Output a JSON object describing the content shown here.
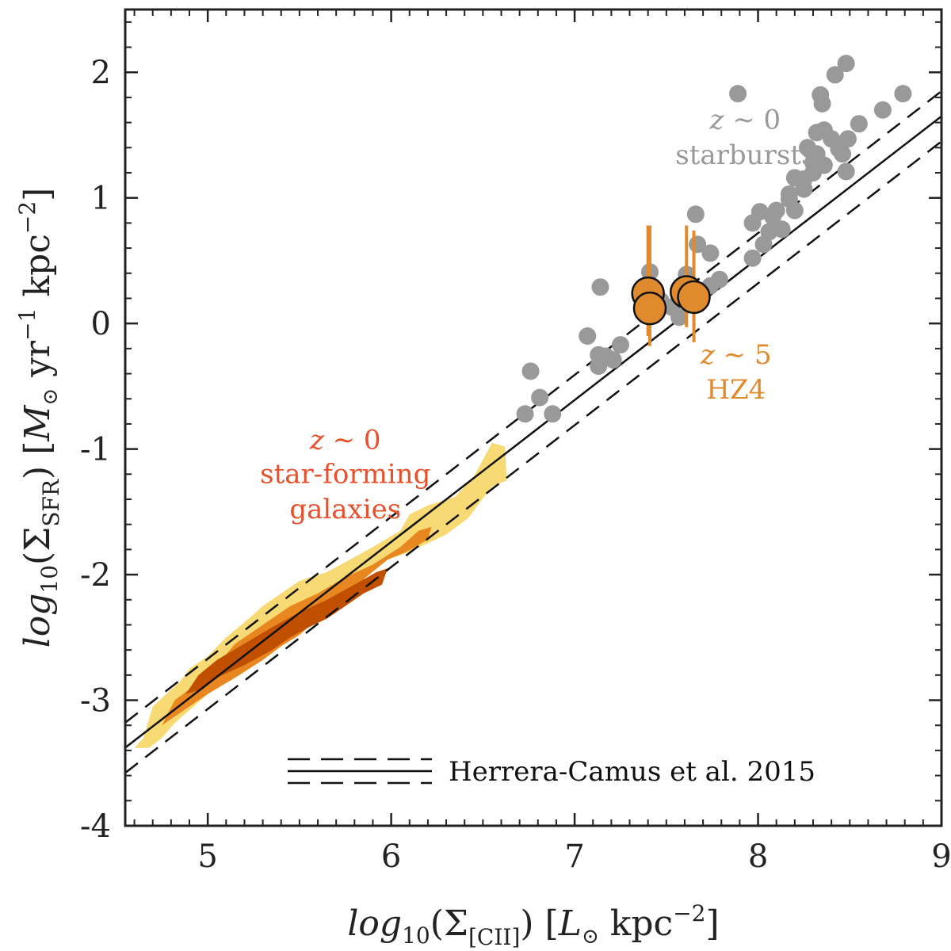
{
  "chart_data": {
    "type": "scatter",
    "xlabel": "log10(Σ[CII]) [L⊙ kpc−2]",
    "ylabel": "log10(ΣSFR) [M⊙ yr−1 kpc−2]",
    "xlim": [
      4.55,
      9.0
    ],
    "ylim": [
      -4.0,
      2.5
    ],
    "x_ticks": [
      5,
      6,
      7,
      8,
      9
    ],
    "x_tick_labels": [
      "5",
      "6",
      "7",
      "8",
      "9"
    ],
    "y_ticks": [
      -4,
      -3,
      -2,
      -1,
      0,
      1,
      2
    ],
    "y_tick_labels": [
      "-4",
      "-3",
      "-2",
      "-1",
      "0",
      "1",
      "2"
    ],
    "colors": {
      "starburst": "#999999",
      "hz4": "#e08a2e",
      "contour_outer": "#f7da73",
      "contour_mid": "#e8861f",
      "contour_inner": "#c04f00",
      "sf_label": "#e8502b",
      "starburst_label": "#999999",
      "hz4_label": "#e08a2e"
    },
    "relation": {
      "name": "Herrera-Camus et al. 2015",
      "slope": 1.13,
      "intercept": -8.52,
      "scatter": 0.2,
      "x_range": [
        4.55,
        9.0
      ]
    },
    "series": [
      {
        "name": "z ~ 0 starbursts",
        "points": [
          [
            6.73,
            -0.72
          ],
          [
            6.76,
            -0.38
          ],
          [
            6.81,
            -0.59
          ],
          [
            6.88,
            -0.72
          ],
          [
            7.07,
            -0.1
          ],
          [
            7.13,
            -0.25
          ],
          [
            7.13,
            -0.34
          ],
          [
            7.14,
            0.29
          ],
          [
            7.17,
            -0.26
          ],
          [
            7.21,
            -0.29
          ],
          [
            7.25,
            -0.17
          ],
          [
            7.41,
            0.41
          ],
          [
            7.44,
            0.26
          ],
          [
            7.47,
            0.18
          ],
          [
            7.53,
            0.13
          ],
          [
            7.57,
            0.05
          ],
          [
            7.61,
            0.39
          ],
          [
            7.66,
            0.87
          ],
          [
            7.67,
            0.63
          ],
          [
            7.74,
            0.56
          ],
          [
            7.74,
            0.3
          ],
          [
            7.79,
            0.35
          ],
          [
            7.89,
            1.83
          ],
          [
            7.97,
            0.52
          ],
          [
            7.97,
            0.8
          ],
          [
            8.01,
            0.89
          ],
          [
            8.03,
            0.63
          ],
          [
            8.06,
            0.73
          ],
          [
            8.08,
            0.85
          ],
          [
            8.1,
            0.9
          ],
          [
            8.13,
            0.75
          ],
          [
            8.17,
            0.99
          ],
          [
            8.17,
            1.03
          ],
          [
            8.2,
            0.9
          ],
          [
            8.2,
            1.16
          ],
          [
            8.25,
            1.15
          ],
          [
            8.27,
            1.4
          ],
          [
            8.3,
            1.2
          ],
          [
            8.3,
            1.28
          ],
          [
            8.32,
            1.52
          ],
          [
            8.34,
            1.82
          ],
          [
            8.35,
            1.75
          ],
          [
            8.36,
            1.26
          ],
          [
            8.36,
            1.54
          ],
          [
            8.4,
            1.47
          ],
          [
            8.42,
            1.98
          ],
          [
            8.44,
            1.39
          ],
          [
            8.46,
            1.35
          ],
          [
            8.48,
            2.07
          ],
          [
            8.48,
            1.21
          ],
          [
            8.49,
            1.47
          ],
          [
            8.55,
            1.59
          ],
          [
            8.68,
            1.7
          ],
          [
            8.79,
            1.83
          ],
          [
            8.25,
            1.07
          ],
          [
            8.32,
            1.35
          ]
        ]
      },
      {
        "name": "z ~ 5 HZ4",
        "points": [
          [
            7.4,
            0.24
          ],
          [
            7.41,
            0.12
          ],
          [
            7.61,
            0.25
          ],
          [
            7.65,
            0.21
          ]
        ],
        "errors": [
          [
            -0.34,
            0.54
          ],
          [
            -0.3,
            0.66
          ],
          [
            -0.28,
            0.53
          ],
          [
            -0.36,
            0.53
          ]
        ]
      }
    ],
    "contours": [
      {
        "level": "outer",
        "polygon": [
          [
            4.6,
            -3.38
          ],
          [
            4.65,
            -3.3
          ],
          [
            4.7,
            -3.05
          ],
          [
            4.85,
            -2.85
          ],
          [
            4.9,
            -2.75
          ],
          [
            5.0,
            -2.65
          ],
          [
            5.1,
            -2.5
          ],
          [
            5.2,
            -2.38
          ],
          [
            5.3,
            -2.25
          ],
          [
            5.4,
            -2.15
          ],
          [
            5.5,
            -2.05
          ],
          [
            5.65,
            -1.98
          ],
          [
            5.75,
            -1.9
          ],
          [
            5.9,
            -1.78
          ],
          [
            6.05,
            -1.65
          ],
          [
            6.1,
            -1.52
          ],
          [
            6.2,
            -1.45
          ],
          [
            6.35,
            -1.38
          ],
          [
            6.45,
            -1.22
          ],
          [
            6.55,
            -0.95
          ],
          [
            6.62,
            -0.98
          ],
          [
            6.63,
            -1.25
          ],
          [
            6.55,
            -1.3
          ],
          [
            6.48,
            -1.43
          ],
          [
            6.42,
            -1.55
          ],
          [
            6.3,
            -1.68
          ],
          [
            6.2,
            -1.75
          ],
          [
            6.08,
            -1.83
          ],
          [
            5.98,
            -1.88
          ],
          [
            5.88,
            -2.0
          ],
          [
            5.78,
            -2.12
          ],
          [
            5.7,
            -2.25
          ],
          [
            5.6,
            -2.35
          ],
          [
            5.5,
            -2.48
          ],
          [
            5.4,
            -2.57
          ],
          [
            5.3,
            -2.68
          ],
          [
            5.15,
            -2.82
          ],
          [
            5.0,
            -2.95
          ],
          [
            4.9,
            -3.08
          ],
          [
            4.82,
            -3.18
          ],
          [
            4.75,
            -3.3
          ],
          [
            4.68,
            -3.38
          ]
        ]
      },
      {
        "level": "mid",
        "polygon": [
          [
            4.75,
            -3.2
          ],
          [
            4.82,
            -3.0
          ],
          [
            4.95,
            -2.86
          ],
          [
            5.05,
            -2.72
          ],
          [
            5.15,
            -2.55
          ],
          [
            5.3,
            -2.4
          ],
          [
            5.45,
            -2.25
          ],
          [
            5.6,
            -2.15
          ],
          [
            5.75,
            -2.02
          ],
          [
            5.9,
            -1.92
          ],
          [
            6.05,
            -1.78
          ],
          [
            6.15,
            -1.65
          ],
          [
            6.22,
            -1.62
          ],
          [
            6.2,
            -1.72
          ],
          [
            6.08,
            -1.82
          ],
          [
            5.98,
            -1.88
          ],
          [
            5.88,
            -2.0
          ],
          [
            5.78,
            -2.12
          ],
          [
            5.7,
            -2.25
          ],
          [
            5.6,
            -2.35
          ],
          [
            5.5,
            -2.48
          ],
          [
            5.4,
            -2.57
          ],
          [
            5.3,
            -2.68
          ],
          [
            5.15,
            -2.82
          ],
          [
            5.0,
            -2.95
          ],
          [
            4.9,
            -3.05
          ],
          [
            4.8,
            -3.15
          ]
        ]
      },
      {
        "level": "inner",
        "polygon": [
          [
            4.88,
            -2.95
          ],
          [
            4.95,
            -2.8
          ],
          [
            5.05,
            -2.68
          ],
          [
            5.2,
            -2.55
          ],
          [
            5.35,
            -2.42
          ],
          [
            5.5,
            -2.3
          ],
          [
            5.65,
            -2.2
          ],
          [
            5.8,
            -2.08
          ],
          [
            5.92,
            -1.98
          ],
          [
            5.98,
            -1.95
          ],
          [
            5.95,
            -2.08
          ],
          [
            5.85,
            -2.15
          ],
          [
            5.75,
            -2.25
          ],
          [
            5.65,
            -2.35
          ],
          [
            5.55,
            -2.42
          ],
          [
            5.45,
            -2.5
          ],
          [
            5.35,
            -2.6
          ],
          [
            5.2,
            -2.72
          ],
          [
            5.05,
            -2.82
          ],
          [
            4.95,
            -2.92
          ]
        ]
      }
    ],
    "annotations": [
      {
        "text": "z ∼ 0",
        "x": 5.75,
        "y": -1.0,
        "color_key": "sf_label"
      },
      {
        "text": "star-forming",
        "x": 5.75,
        "y": -1.27,
        "color_key": "sf_label"
      },
      {
        "text": "galaxies",
        "x": 5.75,
        "y": -1.55,
        "color_key": "sf_label"
      },
      {
        "text": "z ∼ 0",
        "x": 7.93,
        "y": 1.55,
        "color_key": "starburst_label"
      },
      {
        "text": "starbursts",
        "x": 7.93,
        "y": 1.27,
        "color_key": "starburst_label"
      },
      {
        "text": "z ∼ 5",
        "x": 7.88,
        "y": -0.32,
        "color_key": "hz4_label"
      },
      {
        "text": "HZ4",
        "x": 7.88,
        "y": -0.6,
        "color_key": "hz4_label"
      }
    ],
    "legend": {
      "entry": "Herrera-Camus et al. 2015",
      "position": "bottom-right"
    }
  }
}
